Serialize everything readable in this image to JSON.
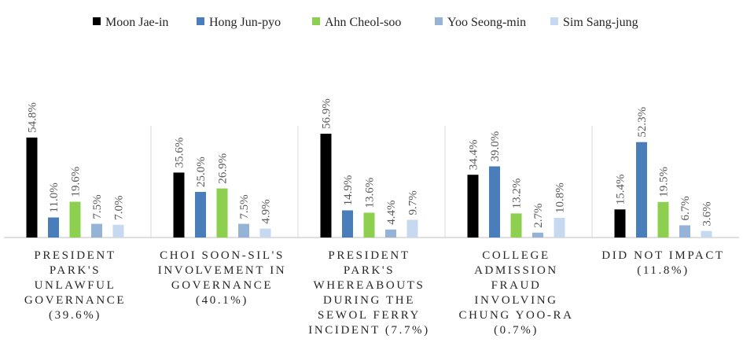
{
  "chart_data": {
    "type": "bar",
    "categories": [
      "PRESIDENT PARK'S UNLAWFUL GOVERNANCE (39.6%)",
      "CHOI SOON-SIL'S INVOLVEMENT IN GOVERNANCE (40.1%)",
      "PRESIDENT PARK'S WHEREABOUTS DURING THE SEWOL FERRY INCIDENT (7.7%)",
      "COLLEGE ADMISSION FRAUD INVOLVING CHUNG YOO-RA (0.7%)",
      "DID NOT IMPACT (11.8%)"
    ],
    "series": [
      {
        "name": "Moon Jae-in",
        "color": "#000000",
        "values": [
          54.8,
          35.6,
          56.9,
          34.4,
          15.4
        ],
        "value_labels": [
          "54.8%",
          "35.6%",
          "56.9%",
          "34.4%",
          "15.4%"
        ]
      },
      {
        "name": "Hong Jun-pyo",
        "color": "#4a7ebb",
        "values": [
          11.0,
          25.0,
          14.9,
          39.0,
          52.3
        ],
        "value_labels": [
          "11.0%",
          "25.0%",
          "14.9%",
          "39.0%",
          "52.3%"
        ]
      },
      {
        "name": "Ahn Cheol-soo",
        "color": "#8dd04f",
        "values": [
          19.6,
          26.9,
          13.6,
          13.2,
          19.5
        ],
        "value_labels": [
          "19.6%",
          "26.9%",
          "13.6%",
          "13.2%",
          "19.5%"
        ]
      },
      {
        "name": "Yoo Seong-min",
        "color": "#95b3d7",
        "values": [
          7.5,
          7.5,
          4.4,
          2.7,
          6.7
        ],
        "value_labels": [
          "7.5%",
          "7.5%",
          "4.4%",
          "2.7%",
          "6.7%"
        ]
      },
      {
        "name": "Sim Sang-jung",
        "color": "#c6d9f1",
        "values": [
          7.0,
          4.9,
          9.7,
          10.8,
          3.6
        ],
        "value_labels": [
          "7.0%",
          "4.9%",
          "9.7%",
          "10.8%",
          "3.6%"
        ]
      }
    ],
    "legend": "top"
  }
}
